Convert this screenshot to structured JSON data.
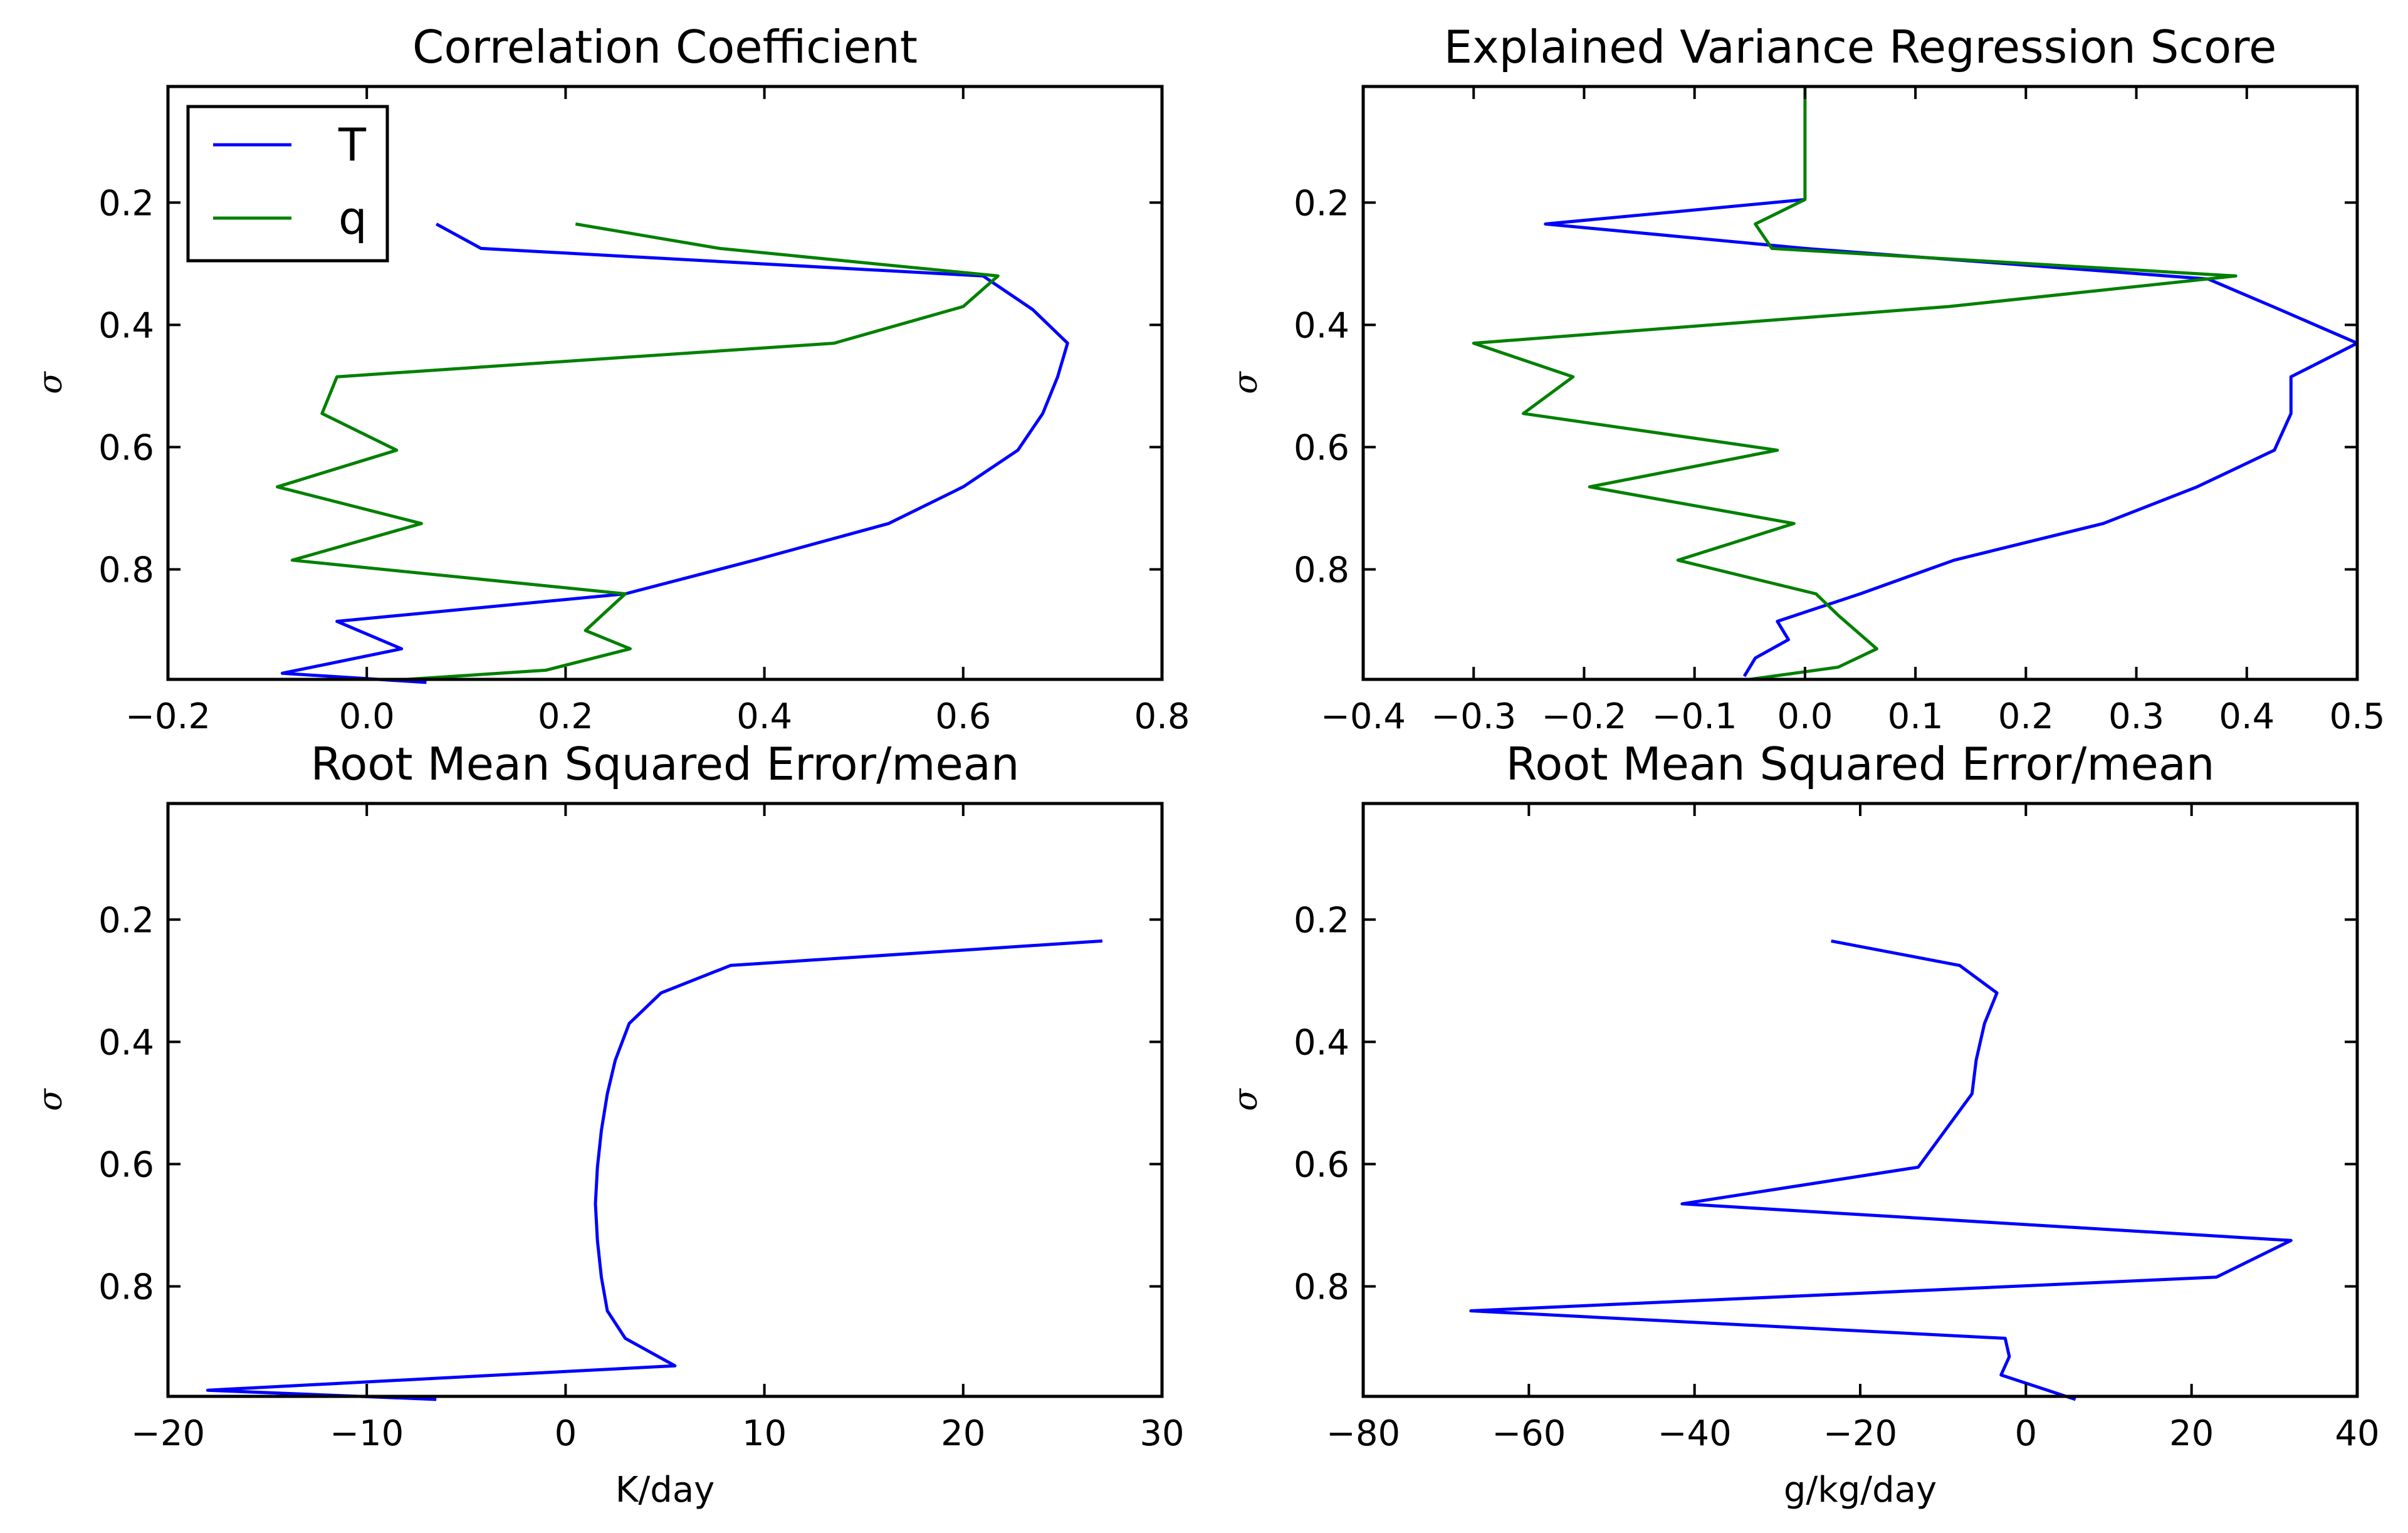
{
  "colors": {
    "T": "#0000ff",
    "q": "#008000"
  },
  "chart_data": [
    {
      "type": "line",
      "title": "Correlation Coefficient",
      "xlabel": "",
      "ylabel": "σ",
      "xlim": [
        -0.2,
        0.8
      ],
      "ylim": [
        0.98,
        0.01
      ],
      "xticks": [
        -0.2,
        0.0,
        0.2,
        0.4,
        0.6,
        0.8
      ],
      "xtick_labels": [
        "−0.2",
        "0.0",
        "0.2",
        "0.4",
        "0.6",
        "0.8"
      ],
      "yticks": [
        0.2,
        0.4,
        0.6,
        0.8
      ],
      "ytick_labels": [
        "0.2",
        "0.4",
        "0.6",
        "0.8"
      ],
      "legend": {
        "position": "upper-left",
        "entries": [
          "T",
          "q"
        ]
      },
      "series": [
        {
          "name": "T",
          "color": "#0000ff",
          "points": [
            [
              0.07,
              0.235
            ],
            [
              0.115,
              0.275
            ],
            [
              0.62,
              0.32
            ],
            [
              0.67,
              0.375
            ],
            [
              0.705,
              0.43
            ],
            [
              0.695,
              0.485
            ],
            [
              0.68,
              0.545
            ],
            [
              0.655,
              0.605
            ],
            [
              0.6,
              0.665
            ],
            [
              0.525,
              0.725
            ],
            [
              0.39,
              0.785
            ],
            [
              0.26,
              0.84
            ],
            [
              -0.03,
              0.885
            ],
            [
              0.035,
              0.93
            ],
            [
              -0.085,
              0.97
            ],
            [
              0.06,
              0.985
            ]
          ]
        },
        {
          "name": "q",
          "color": "#008000",
          "points": [
            [
              0.21,
              0.235
            ],
            [
              0.355,
              0.275
            ],
            [
              0.635,
              0.32
            ],
            [
              0.6,
              0.37
            ],
            [
              0.47,
              0.43
            ],
            [
              -0.03,
              0.485
            ],
            [
              -0.045,
              0.545
            ],
            [
              0.03,
              0.605
            ],
            [
              -0.09,
              0.665
            ],
            [
              0.055,
              0.725
            ],
            [
              -0.075,
              0.785
            ],
            [
              0.26,
              0.84
            ],
            [
              0.22,
              0.9
            ],
            [
              0.265,
              0.93
            ],
            [
              0.18,
              0.965
            ],
            [
              0.04,
              0.98
            ]
          ]
        }
      ]
    },
    {
      "type": "line",
      "title": "Explained Variance Regression Score",
      "xlabel": "",
      "ylabel": "σ",
      "xlim": [
        -0.4,
        0.5
      ],
      "ylim": [
        0.98,
        0.01
      ],
      "xticks": [
        -0.4,
        -0.3,
        -0.2,
        -0.1,
        0.0,
        0.1,
        0.2,
        0.3,
        0.4,
        0.5
      ],
      "xtick_labels": [
        "−0.4",
        "−0.3",
        "−0.2",
        "−0.1",
        "0.0",
        "0.1",
        "0.2",
        "0.3",
        "0.4",
        "0.5"
      ],
      "yticks": [
        0.2,
        0.4,
        0.6,
        0.8
      ],
      "ytick_labels": [
        "0.2",
        "0.4",
        "0.6",
        "0.8"
      ],
      "series": [
        {
          "name": "T",
          "color": "#0000ff",
          "points": [
            [
              0.0,
              0.195
            ],
            [
              -0.235,
              0.235
            ],
            [
              0.0,
              0.275
            ],
            [
              0.365,
              0.325
            ],
            [
              0.43,
              0.375
            ],
            [
              0.5,
              0.43
            ],
            [
              0.44,
              0.485
            ],
            [
              0.44,
              0.545
            ],
            [
              0.425,
              0.605
            ],
            [
              0.355,
              0.665
            ],
            [
              0.27,
              0.725
            ],
            [
              0.135,
              0.785
            ],
            [
              0.05,
              0.84
            ],
            [
              -0.025,
              0.885
            ],
            [
              -0.015,
              0.915
            ],
            [
              -0.045,
              0.945
            ],
            [
              -0.055,
              0.975
            ]
          ]
        },
        {
          "name": "q",
          "color": "#008000",
          "points": [
            [
              0.0,
              0.01
            ],
            [
              0.0,
              0.195
            ],
            [
              -0.045,
              0.235
            ],
            [
              -0.03,
              0.275
            ],
            [
              0.39,
              0.32
            ],
            [
              0.13,
              0.37
            ],
            [
              -0.3,
              0.43
            ],
            [
              -0.21,
              0.485
            ],
            [
              -0.255,
              0.545
            ],
            [
              -0.025,
              0.605
            ],
            [
              -0.195,
              0.665
            ],
            [
              -0.01,
              0.725
            ],
            [
              -0.115,
              0.785
            ],
            [
              0.01,
              0.84
            ],
            [
              0.03,
              0.875
            ],
            [
              0.065,
              0.93
            ],
            [
              0.03,
              0.96
            ],
            [
              -0.05,
              0.98
            ]
          ]
        }
      ]
    },
    {
      "type": "line",
      "title": "Root Mean Squared Error/mean",
      "xlabel": "K/day",
      "ylabel": "σ",
      "xlim": [
        -20,
        30
      ],
      "ylim": [
        0.98,
        0.01
      ],
      "xticks": [
        -20,
        -10,
        0,
        10,
        20,
        30
      ],
      "xtick_labels": [
        "−20",
        "−10",
        "0",
        "10",
        "20",
        "30"
      ],
      "yticks": [
        0.2,
        0.4,
        0.6,
        0.8
      ],
      "ytick_labels": [
        "0.2",
        "0.4",
        "0.6",
        "0.8"
      ],
      "series": [
        {
          "name": "T",
          "color": "#0000ff",
          "points": [
            [
              27.0,
              0.235
            ],
            [
              8.3,
              0.275
            ],
            [
              4.8,
              0.32
            ],
            [
              3.2,
              0.37
            ],
            [
              2.5,
              0.43
            ],
            [
              2.1,
              0.485
            ],
            [
              1.8,
              0.545
            ],
            [
              1.6,
              0.605
            ],
            [
              1.5,
              0.665
            ],
            [
              1.6,
              0.725
            ],
            [
              1.8,
              0.785
            ],
            [
              2.1,
              0.84
            ],
            [
              3.0,
              0.885
            ],
            [
              5.5,
              0.93
            ],
            [
              -18.0,
              0.97
            ],
            [
              -6.5,
              0.985
            ]
          ]
        }
      ]
    },
    {
      "type": "line",
      "title": "Root Mean Squared Error/mean",
      "xlabel": "g/kg/day",
      "ylabel": "σ",
      "xlim": [
        -80,
        40
      ],
      "ylim": [
        0.98,
        0.01
      ],
      "xticks": [
        -80,
        -60,
        -40,
        -20,
        0,
        20,
        40
      ],
      "xtick_labels": [
        "−80",
        "−60",
        "−40",
        "−20",
        "0",
        "20",
        "40"
      ],
      "yticks": [
        0.2,
        0.4,
        0.6,
        0.8
      ],
      "ytick_labels": [
        "0.2",
        "0.4",
        "0.6",
        "0.8"
      ],
      "series": [
        {
          "name": "q",
          "color": "#0000ff",
          "points": [
            [
              -23.5,
              0.235
            ],
            [
              -8.0,
              0.275
            ],
            [
              -3.5,
              0.32
            ],
            [
              -5.0,
              0.37
            ],
            [
              -6.0,
              0.43
            ],
            [
              -6.5,
              0.485
            ],
            [
              -13.0,
              0.605
            ],
            [
              -41.5,
              0.665
            ],
            [
              32.0,
              0.725
            ],
            [
              23.0,
              0.785
            ],
            [
              -67.0,
              0.84
            ],
            [
              -2.5,
              0.885
            ],
            [
              -2.0,
              0.915
            ],
            [
              -3.0,
              0.945
            ],
            [
              6.0,
              0.985
            ]
          ]
        }
      ]
    }
  ]
}
